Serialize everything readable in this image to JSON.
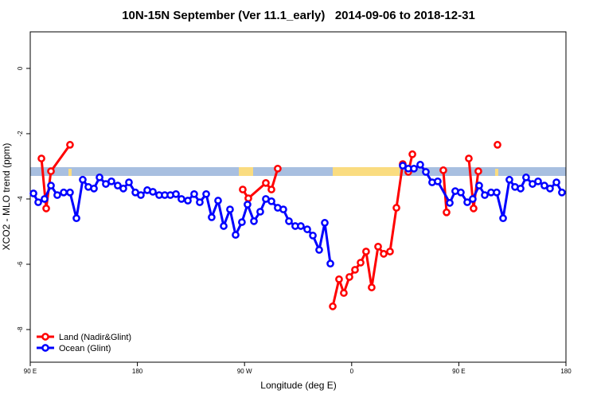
{
  "chart_data": {
    "type": "line",
    "title": "10N-15N September (Ver 11.1_early)   2014-09-06 to 2018-12-31",
    "x_label": "Longitude (deg E)",
    "y_label": "XCO2 - MLO trend (ppm)",
    "xlim": [
      90,
      540
    ],
    "xticks": [
      {
        "value": 90,
        "label": "90 E"
      },
      180,
      {
        "value": 270,
        "label": "90 W"
      },
      {
        "value": 360,
        "label": "0"
      },
      {
        "value": 450,
        "label": "90 E"
      },
      {
        "value": 540,
        "label": "180"
      }
    ],
    "ylim": [
      -9,
      1.12
    ],
    "yticks": [
      0,
      -2,
      -4,
      -6,
      -8
    ],
    "legend": "bottom-left",
    "series": [
      {
        "name": "Land (Nadir&Glint)",
        "color": "#ff0000",
        "x": [
          99.4,
          103.4,
          107.4,
          123.4,
          200,
          268.5,
          273.2,
          287.9,
          292.6,
          297.9,
          320,
          344.1,
          349.4,
          353.4,
          358.1,
          362.8,
          367.5,
          372.1,
          376.8,
          382.2,
          386.9,
          392.2,
          397.6,
          402.9,
          407.6,
          411.0,
          425,
          437.0,
          439.7,
          450,
          458.4,
          462.4,
          466.4,
          475,
          482.5
        ],
        "values": [
          -2.76,
          -4.29,
          -3.15,
          -2.34,
          null,
          -3.71,
          -3.98,
          -3.51,
          -3.71,
          -3.07,
          null,
          -7.29,
          -6.46,
          -6.88,
          -6.39,
          -6.17,
          -5.95,
          -5.61,
          -6.71,
          -5.46,
          -5.68,
          -5.61,
          -4.27,
          -2.93,
          -3.17,
          -2.63,
          null,
          -3.12,
          -4.41,
          null,
          -2.76,
          -4.29,
          -3.15,
          null,
          -2.34
        ]
      },
      {
        "name": "Ocean (Glint)",
        "color": "#0000ff",
        "x": [
          92.7,
          96.7,
          102.0,
          107.4,
          112.7,
          118.1,
          123.4,
          128.8,
          134.1,
          138.8,
          143.5,
          148.2,
          153.5,
          158.2,
          163.5,
          168.2,
          172.9,
          178.3,
          182.9,
          188.3,
          193.0,
          198.3,
          203.0,
          207.7,
          212.4,
          217.0,
          222.4,
          227.7,
          232.4,
          237.8,
          242.4,
          247.8,
          252.5,
          257.8,
          262.5,
          267.8,
          272.5,
          277.9,
          283.2,
          287.9,
          292.6,
          297.9,
          302.6,
          307.3,
          312.6,
          317.3,
          322.7,
          327.4,
          332.7,
          337.4,
          342.1,
          370,
          402.9,
          407.6,
          412.3,
          417.6,
          422.3,
          427.6,
          432.3,
          442.4,
          447.0,
          451.7,
          457.1,
          461.7,
          467.1,
          471.8,
          477.1,
          481.8,
          487.2,
          492.5,
          497.2,
          501.9,
          506.5,
          511.9,
          516.6,
          521.9,
          526.6,
          532.0,
          536.6
        ],
        "values": [
          -3.83,
          -4.1,
          -4.0,
          -3.59,
          -3.88,
          -3.8,
          -3.8,
          -4.59,
          -3.41,
          -3.63,
          -3.68,
          -3.34,
          -3.54,
          -3.46,
          -3.59,
          -3.68,
          -3.49,
          -3.8,
          -3.88,
          -3.73,
          -3.78,
          -3.88,
          -3.88,
          -3.88,
          -3.85,
          -4.0,
          -4.05,
          -3.85,
          -4.1,
          -3.85,
          -4.56,
          -4.05,
          -4.83,
          -4.32,
          -5.1,
          -4.71,
          -4.17,
          -4.68,
          -4.39,
          -4.0,
          -4.07,
          -4.27,
          -4.32,
          -4.68,
          -4.83,
          -4.83,
          -4.93,
          -5.12,
          -5.56,
          -4.73,
          -5.98,
          null,
          -2.98,
          -3.07,
          -3.07,
          -2.95,
          -3.17,
          -3.49,
          -3.46,
          -4.12,
          -3.76,
          -3.8,
          -4.1,
          -4.0,
          -3.59,
          -3.88,
          -3.8,
          -3.8,
          -4.59,
          -3.41,
          -3.63,
          -3.68,
          -3.34,
          -3.54,
          -3.46,
          -3.59,
          -3.68,
          -3.49,
          -3.8
        ]
      }
    ]
  }
}
